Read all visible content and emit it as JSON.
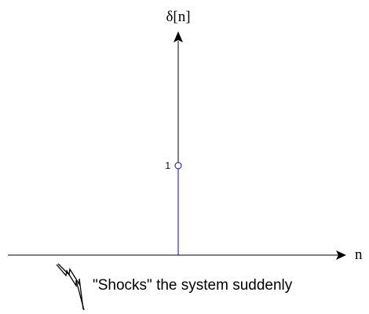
{
  "chart_data": {
    "type": "stem",
    "ylabel": "δ[n]",
    "xlabel": "n",
    "points": [
      {
        "x": 0,
        "y": 1
      }
    ],
    "tick_labels": {
      "y": [
        "1"
      ]
    },
    "grid": false,
    "annotation": "\"Shocks\" the system suddenly",
    "colors": {
      "stem": "#0000cc",
      "marker": "#0000cc",
      "axes": "#000000"
    }
  },
  "icons": {
    "annotation_icon": "lightning-bolt-icon"
  }
}
